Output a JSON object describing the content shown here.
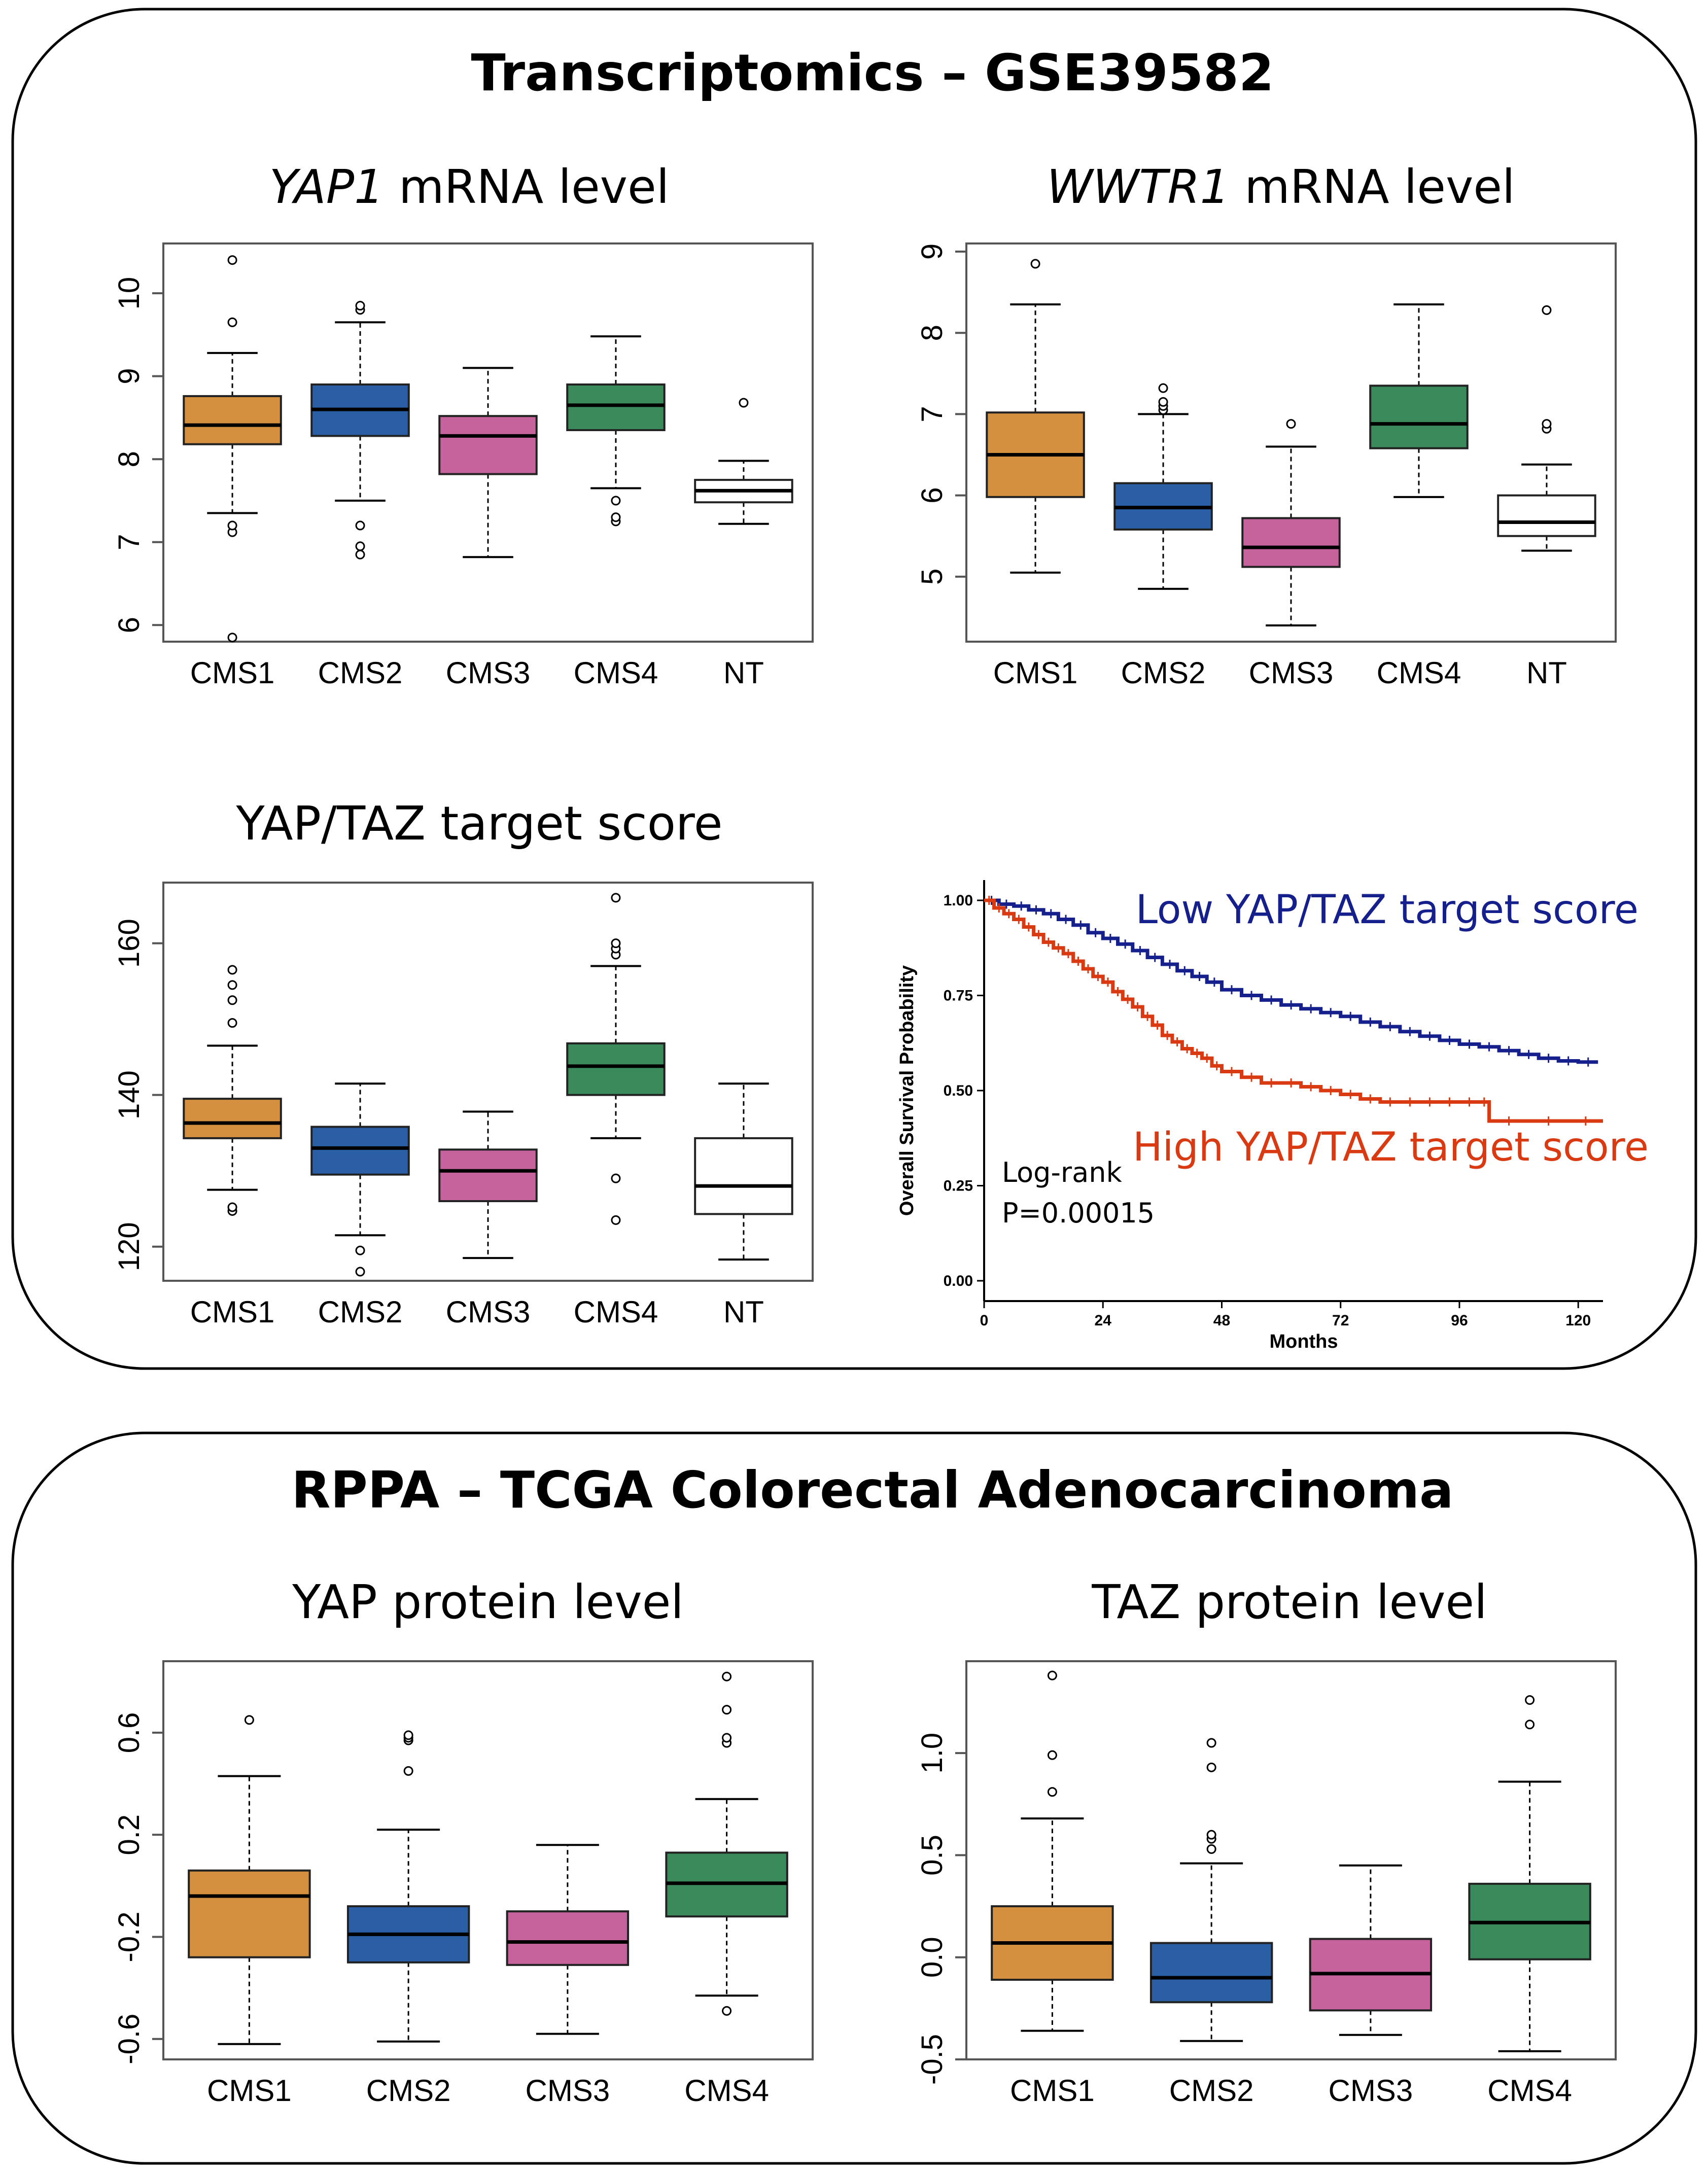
{
  "panels": {
    "transcriptomics": {
      "title": "Transcriptomics – GSE39582"
    },
    "rppa": {
      "title": "RPPA – TCGA Colorectal Adenocarcinoma"
    }
  },
  "chart_data": [
    {
      "id": "yap1",
      "type": "boxplot",
      "title_italic": "YAP1",
      "title_rest": " mRNA level",
      "ylim": [
        5.8,
        10.6
      ],
      "yticks": [
        6,
        7,
        8,
        9,
        10
      ],
      "ytick_labels": [
        "6",
        "7",
        "8",
        "9",
        "10"
      ],
      "categories": [
        "CMS1",
        "CMS2",
        "CMS3",
        "CMS4",
        "NT"
      ],
      "colors": [
        "#d4903e",
        "#2a5fa6",
        "#c6629c",
        "#3a8a5c",
        "#ffffff"
      ],
      "boxes": [
        {
          "wlo": 7.35,
          "q1": 8.18,
          "med": 8.41,
          "q3": 8.76,
          "whi": 9.28,
          "out": [
            5.85,
            7.12,
            7.2,
            9.65,
            10.4
          ]
        },
        {
          "wlo": 7.5,
          "q1": 8.28,
          "med": 8.6,
          "q3": 8.9,
          "whi": 9.65,
          "out": [
            6.85,
            6.95,
            7.2,
            9.8,
            9.85
          ]
        },
        {
          "wlo": 6.82,
          "q1": 7.82,
          "med": 8.28,
          "q3": 8.52,
          "whi": 9.1,
          "out": []
        },
        {
          "wlo": 7.65,
          "q1": 8.35,
          "med": 8.65,
          "q3": 8.9,
          "whi": 9.48,
          "out": [
            7.25,
            7.3,
            7.5
          ]
        },
        {
          "wlo": 7.22,
          "q1": 7.48,
          "med": 7.62,
          "q3": 7.75,
          "whi": 7.98,
          "out": [
            8.68
          ]
        }
      ]
    },
    {
      "id": "wwtr1",
      "type": "boxplot",
      "title_italic": "WWTR1",
      "title_rest": " mRNA level",
      "ylim": [
        4.2,
        9.1
      ],
      "yticks": [
        5,
        6,
        7,
        8,
        9
      ],
      "ytick_labels": [
        "5",
        "6",
        "7",
        "8",
        "9"
      ],
      "categories": [
        "CMS1",
        "CMS2",
        "CMS3",
        "CMS4",
        "NT"
      ],
      "colors": [
        "#d4903e",
        "#2a5fa6",
        "#c6629c",
        "#3a8a5c",
        "#ffffff"
      ],
      "boxes": [
        {
          "wlo": 5.05,
          "q1": 5.98,
          "med": 6.5,
          "q3": 7.02,
          "whi": 8.35,
          "out": [
            8.85
          ]
        },
        {
          "wlo": 4.85,
          "q1": 5.58,
          "med": 5.85,
          "q3": 6.15,
          "whi": 7.0,
          "out": [
            7.05,
            7.1,
            7.15,
            7.32
          ]
        },
        {
          "wlo": 4.4,
          "q1": 5.12,
          "med": 5.36,
          "q3": 5.72,
          "whi": 6.6,
          "out": [
            6.88
          ]
        },
        {
          "wlo": 5.98,
          "q1": 6.58,
          "med": 6.88,
          "q3": 7.35,
          "whi": 8.35,
          "out": []
        },
        {
          "wlo": 5.32,
          "q1": 5.5,
          "med": 5.67,
          "q3": 6.0,
          "whi": 6.38,
          "out": [
            6.82,
            6.88,
            8.28
          ]
        }
      ]
    },
    {
      "id": "yaptaz",
      "type": "boxplot",
      "title_italic": "",
      "title_rest": "YAP/TAZ target score",
      "ylim": [
        115.5,
        168
      ],
      "yticks": [
        120,
        140,
        160
      ],
      "ytick_labels": [
        "120",
        "140",
        "160"
      ],
      "categories": [
        "CMS1",
        "CMS2",
        "CMS3",
        "CMS4",
        "NT"
      ],
      "colors": [
        "#d4903e",
        "#2a5fa6",
        "#c6629c",
        "#3a8a5c",
        "#ffffff"
      ],
      "boxes": [
        {
          "wlo": 127.5,
          "q1": 134.3,
          "med": 136.3,
          "q3": 139.5,
          "whi": 146.5,
          "out": [
            124.7,
            125.2,
            149.5,
            152.5,
            154.5,
            156.5
          ]
        },
        {
          "wlo": 121.5,
          "q1": 129.5,
          "med": 133.0,
          "q3": 135.8,
          "whi": 141.5,
          "out": [
            116.7,
            119.5
          ]
        },
        {
          "wlo": 118.5,
          "q1": 126.0,
          "med": 130.0,
          "q3": 132.8,
          "whi": 137.8,
          "out": []
        },
        {
          "wlo": 134.3,
          "q1": 140.0,
          "med": 143.8,
          "q3": 146.8,
          "whi": 157.0,
          "out": [
            123.5,
            129.0,
            158.5,
            159.3,
            160.0,
            166.0
          ]
        },
        {
          "wlo": 118.3,
          "q1": 124.3,
          "med": 128.0,
          "q3": 134.3,
          "whi": 141.5,
          "out": []
        }
      ]
    },
    {
      "id": "km",
      "type": "line",
      "xlabel": "Months",
      "ylabel": "Overall Survival Probability",
      "xlim": [
        0,
        125
      ],
      "ylim": [
        0,
        1.0
      ],
      "xticks": [
        0,
        24,
        48,
        72,
        96,
        120
      ],
      "xtick_labels": [
        "0",
        "24",
        "48",
        "72",
        "96",
        "120"
      ],
      "yticks": [
        0,
        0.25,
        0.5,
        0.75,
        1.0
      ],
      "ytick_labels": [
        "0.00",
        "0.25",
        "0.50",
        "0.75",
        "1.00"
      ],
      "series": [
        {
          "name": "Low YAP/TAZ target score",
          "color": "#16208c",
          "x": [
            0,
            3,
            6,
            9,
            12,
            15,
            18,
            21,
            24,
            27,
            30,
            33,
            36,
            39,
            42,
            45,
            48,
            52,
            56,
            60,
            64,
            68,
            72,
            76,
            80,
            84,
            88,
            92,
            96,
            100,
            104,
            108,
            112,
            116,
            120,
            124
          ],
          "y": [
            1.0,
            0.99,
            0.985,
            0.975,
            0.965,
            0.95,
            0.935,
            0.915,
            0.9,
            0.885,
            0.868,
            0.85,
            0.832,
            0.815,
            0.8,
            0.785,
            0.765,
            0.75,
            0.738,
            0.725,
            0.715,
            0.705,
            0.695,
            0.68,
            0.668,
            0.655,
            0.643,
            0.632,
            0.622,
            0.615,
            0.605,
            0.595,
            0.585,
            0.578,
            0.575,
            0.575
          ]
        },
        {
          "name": "High YAP/TAZ target score",
          "color": "#d93a12",
          "x": [
            0,
            2,
            4,
            6,
            8,
            10,
            12,
            14,
            16,
            18,
            20,
            22,
            24,
            26,
            28,
            30,
            32,
            34,
            36,
            38,
            40,
            42,
            44,
            46,
            48,
            52,
            56,
            60,
            64,
            68,
            72,
            76,
            80,
            84,
            88,
            92,
            96,
            100,
            102,
            110,
            118,
            125
          ],
          "y": [
            1.0,
            0.98,
            0.965,
            0.95,
            0.93,
            0.91,
            0.89,
            0.875,
            0.86,
            0.84,
            0.82,
            0.8,
            0.785,
            0.76,
            0.74,
            0.72,
            0.695,
            0.672,
            0.645,
            0.628,
            0.61,
            0.598,
            0.585,
            0.565,
            0.55,
            0.535,
            0.52,
            0.52,
            0.51,
            0.5,
            0.49,
            0.478,
            0.47,
            0.47,
            0.47,
            0.47,
            0.47,
            0.47,
            0.42,
            0.42,
            0.42,
            0.42
          ]
        }
      ],
      "annotation": {
        "line1": "Log-rank",
        "line2": "P=0.00015"
      }
    },
    {
      "id": "yap_prot",
      "type": "boxplot",
      "title_italic": "",
      "title_rest": "YAP protein level",
      "ylim": [
        -0.68,
        0.88
      ],
      "yticks": [
        -0.6,
        -0.2,
        0.2,
        0.6
      ],
      "ytick_labels": [
        "-0.6",
        "-0.2",
        "0.2",
        "0.6"
      ],
      "categories": [
        "CMS1",
        "CMS2",
        "CMS3",
        "CMS4"
      ],
      "colors": [
        "#d4903e",
        "#2a5fa6",
        "#c6629c",
        "#3a8a5c"
      ],
      "boxes": [
        {
          "wlo": -0.62,
          "q1": -0.28,
          "med": -0.04,
          "q3": 0.06,
          "whi": 0.43,
          "out": [
            0.65
          ]
        },
        {
          "wlo": -0.61,
          "q1": -0.3,
          "med": -0.19,
          "q3": -0.08,
          "whi": 0.22,
          "out": [
            0.45,
            0.57,
            0.58,
            0.59
          ]
        },
        {
          "wlo": -0.58,
          "q1": -0.31,
          "med": -0.22,
          "q3": -0.1,
          "whi": 0.16,
          "out": []
        },
        {
          "wlo": -0.43,
          "q1": -0.12,
          "med": 0.01,
          "q3": 0.13,
          "whi": 0.34,
          "out": [
            -0.49,
            0.56,
            0.58,
            0.69,
            0.82
          ]
        }
      ]
    },
    {
      "id": "taz_prot",
      "type": "boxplot",
      "title_italic": "",
      "title_rest": "TAZ protein level",
      "ylim": [
        -0.5,
        1.45
      ],
      "yticks": [
        -0.5,
        0.0,
        0.5,
        1.0
      ],
      "ytick_labels": [
        "-0.5",
        "0.0",
        "0.5",
        "1.0"
      ],
      "categories": [
        "CMS1",
        "CMS2",
        "CMS3",
        "CMS4"
      ],
      "colors": [
        "#d4903e",
        "#2a5fa6",
        "#c6629c",
        "#3a8a5c"
      ],
      "boxes": [
        {
          "wlo": -0.36,
          "q1": -0.11,
          "med": 0.07,
          "q3": 0.25,
          "whi": 0.68,
          "out": [
            0.81,
            0.99,
            1.38
          ]
        },
        {
          "wlo": -0.41,
          "q1": -0.22,
          "med": -0.1,
          "q3": 0.07,
          "whi": 0.46,
          "out": [
            0.53,
            0.58,
            0.6,
            0.93,
            1.05
          ]
        },
        {
          "wlo": -0.38,
          "q1": -0.26,
          "med": -0.08,
          "q3": 0.09,
          "whi": 0.45,
          "out": []
        },
        {
          "wlo": -0.46,
          "q1": -0.01,
          "med": 0.17,
          "q3": 0.36,
          "whi": 0.86,
          "out": [
            1.14,
            1.26
          ]
        }
      ]
    }
  ]
}
